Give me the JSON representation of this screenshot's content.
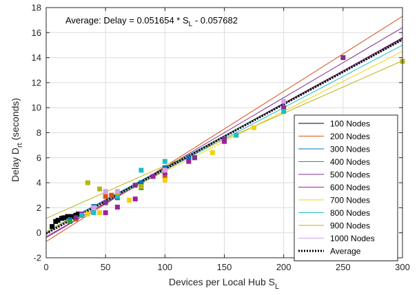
{
  "chart_data": {
    "type": "scatter",
    "xlabel": {
      "main": "Devices per Local Hub S",
      "sub": "L"
    },
    "ylabel": {
      "main": "Delay D",
      "sub": "rt",
      "suffix": " (seconds)"
    },
    "xlim": [
      0,
      300
    ],
    "ylim": [
      -2,
      18
    ],
    "x_ticks": [
      0,
      50,
      100,
      150,
      200,
      250,
      300
    ],
    "y_ticks": [
      -2,
      0,
      2,
      4,
      6,
      8,
      10,
      12,
      14,
      16,
      18
    ],
    "grid": true,
    "legend_position": "bottom-right",
    "annotation": {
      "prefix": "Average:   Delay = 0.051654 * S",
      "sub": "L",
      "suffix": " - 0.057682"
    },
    "series": [
      {
        "name": "100 Nodes",
        "color": "#000000",
        "fit": {
          "slope": 0.052,
          "intercept": -0.05
        },
        "points": [
          [
            5,
            0.5
          ],
          [
            8,
            0.9
          ],
          [
            10,
            1.0
          ],
          [
            13,
            1.15
          ],
          [
            15,
            1.2
          ],
          [
            18,
            1.3
          ],
          [
            20,
            1.2
          ],
          [
            22,
            1.3
          ],
          [
            25,
            1.4
          ],
          [
            27,
            1.5
          ]
        ]
      },
      {
        "name": "200 Nodes",
        "color": "#d95319",
        "fit": {
          "slope": 0.06,
          "intercept": -0.7
        },
        "points": [
          [
            20,
            1.0
          ],
          [
            25,
            1.1
          ],
          [
            40,
            2.0
          ],
          [
            50,
            2.9
          ],
          [
            55,
            3.0
          ],
          [
            60,
            2.9
          ],
          [
            80,
            3.9
          ],
          [
            100,
            4.5
          ]
        ]
      },
      {
        "name": "300 Nodes",
        "color": "#0072bd",
        "fit": {
          "slope": 0.051,
          "intercept": 0.1
        },
        "points": [
          [
            20,
            1.05
          ],
          [
            30,
            1.4
          ],
          [
            40,
            2.1
          ],
          [
            60,
            2.8
          ],
          [
            80,
            4.0
          ],
          [
            100,
            5.2
          ],
          [
            120,
            6.0
          ],
          [
            150,
            7.5
          ]
        ]
      },
      {
        "name": "400 Nodes",
        "color": "#22a33a",
        "fit": {
          "slope": 0.0515,
          "intercept": 0.0
        },
        "points": [
          [
            20,
            0.9
          ],
          [
            25,
            1.2
          ],
          [
            40,
            2.0
          ],
          [
            60,
            3.1
          ],
          [
            80,
            3.6
          ],
          [
            100,
            4.9
          ],
          [
            125,
            6.0
          ]
        ]
      },
      {
        "name": "500 Nodes",
        "color": "#7e2f8e",
        "fit": {
          "slope": 0.056,
          "intercept": -0.4
        },
        "points": [
          [
            25,
            1.2
          ],
          [
            50,
            2.4
          ],
          [
            75,
            3.8
          ],
          [
            100,
            5.0
          ],
          [
            125,
            6.0
          ],
          [
            150,
            7.5
          ],
          [
            200,
            10.0
          ],
          [
            250,
            14.0
          ]
        ]
      },
      {
        "name": "600 Nodes",
        "color": "#a01fa0",
        "fit": {
          "slope": 0.053,
          "intercept": -0.3
        },
        "points": [
          [
            30,
            1.5
          ],
          [
            50,
            1.6
          ],
          [
            60,
            2.05
          ],
          [
            75,
            2.7
          ],
          [
            90,
            4.5
          ],
          [
            100,
            4.8
          ],
          [
            120,
            5.7
          ],
          [
            150,
            7.3
          ]
        ]
      },
      {
        "name": "700 Nodes",
        "color": "#f2d10c",
        "fit": {
          "slope": 0.048,
          "intercept": 0.1
        },
        "points": [
          [
            35,
            1.5
          ],
          [
            45,
            1.6
          ],
          [
            70,
            2.6
          ],
          [
            100,
            4.2
          ],
          [
            140,
            6.4
          ],
          [
            175,
            8.4
          ]
        ]
      },
      {
        "name": "800 Nodes",
        "color": "#1ebdc6",
        "fit": {
          "slope": 0.05,
          "intercept": 0.0
        },
        "points": [
          [
            30,
            1.4
          ],
          [
            40,
            1.6
          ],
          [
            60,
            2.9
          ],
          [
            80,
            5.0
          ],
          [
            100,
            5.7
          ],
          [
            160,
            7.8
          ],
          [
            200,
            9.7
          ]
        ]
      },
      {
        "name": "900 Nodes",
        "color": "#b5b512",
        "fit": {
          "slope": 0.042,
          "intercept": 1.15
        },
        "points": [
          [
            35,
            4.0
          ],
          [
            45,
            3.5
          ],
          [
            60,
            3.2
          ],
          [
            80,
            3.7
          ],
          [
            100,
            5.0
          ],
          [
            300,
            13.7
          ]
        ]
      },
      {
        "name": "1000 Nodes",
        "color": "#d9a0e8",
        "fit": {
          "slope": 0.0515,
          "intercept": -0.05
        },
        "points": [
          [
            40,
            2.0
          ],
          [
            50,
            3.3
          ],
          [
            60,
            3.3
          ],
          [
            100,
            5.0
          ],
          [
            200,
            10.5
          ]
        ]
      },
      {
        "name": "Average",
        "color": "#000000",
        "dotted": true,
        "fit": {
          "slope": 0.051654,
          "intercept": -0.057682
        }
      }
    ]
  }
}
